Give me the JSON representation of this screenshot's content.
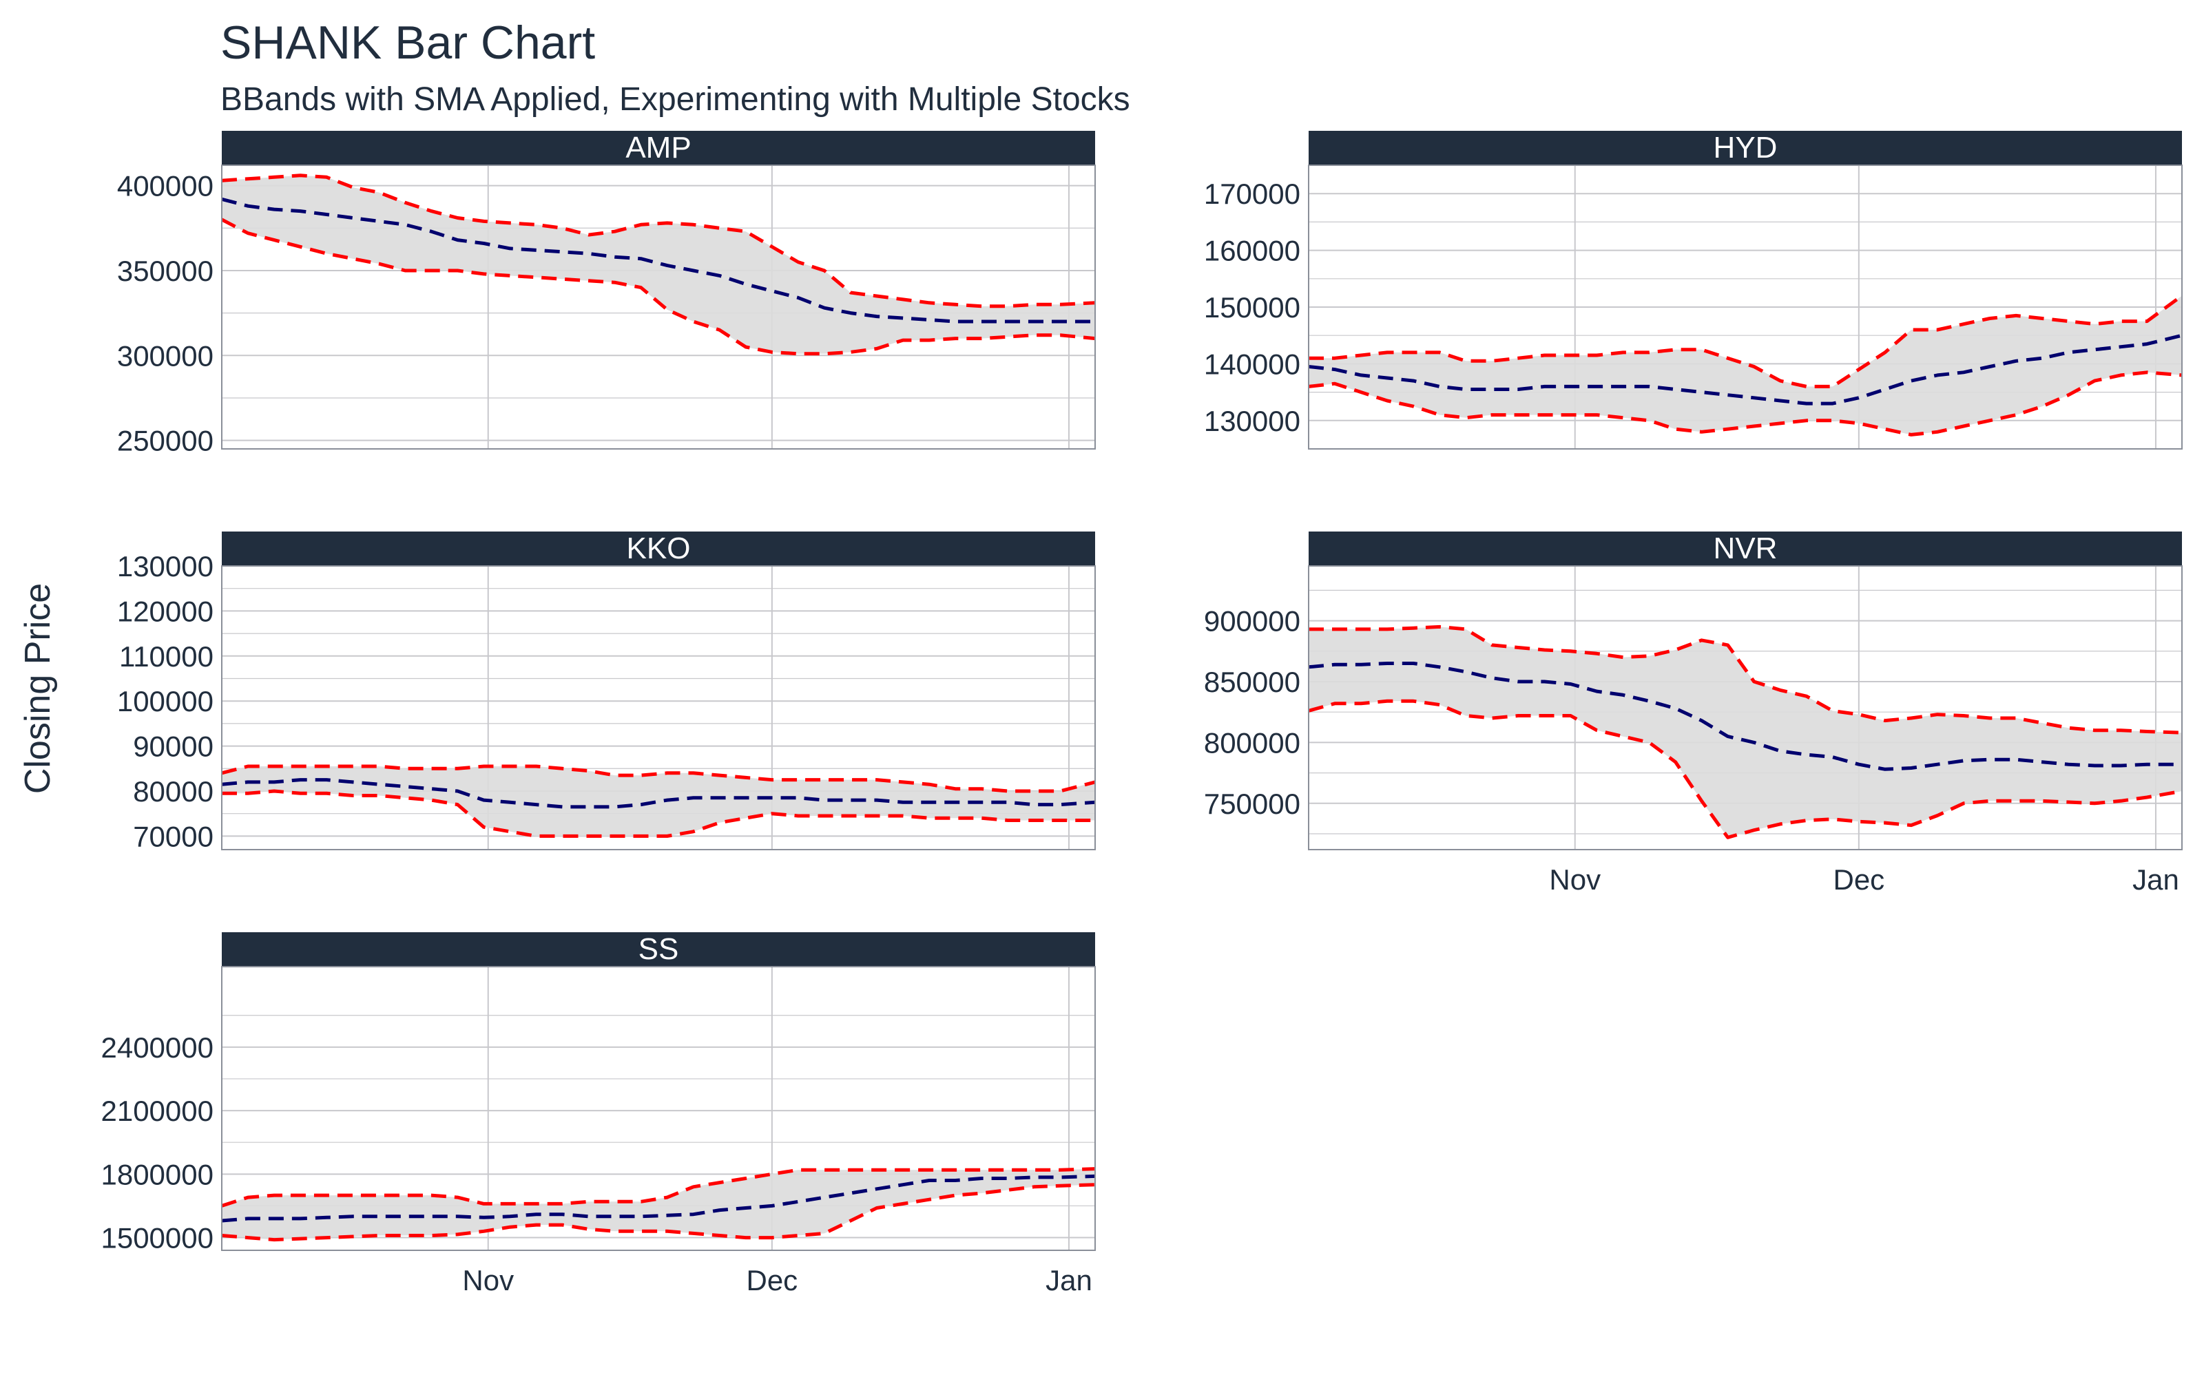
{
  "title": "SHANK Bar Chart",
  "subtitle": "BBands with SMA Applied, Experimenting with Multiple Stocks",
  "ylabel": "Closing Price",
  "colors": {
    "strip": "#212e3e",
    "strip_text": "#ffffff",
    "title": "#212e3e",
    "band_fill": "#dcdcdc",
    "band_line": "#ff0000",
    "sma_line": "#00006e",
    "grid": "#c8c8cc",
    "axis_text": "#212e3e"
  },
  "chart_data": {
    "type": "line",
    "x_axis": {
      "xlim": [
        0,
        100
      ],
      "ticks": [
        {
          "label": "Nov",
          "value": 30.5
        },
        {
          "label": "Dec",
          "value": 63
        },
        {
          "label": "Jan",
          "value": 97
        }
      ]
    },
    "x": [
      0,
      3,
      6,
      9,
      12,
      15,
      18,
      21,
      24,
      27,
      30,
      33,
      36,
      39,
      42,
      45,
      48,
      51,
      54,
      57,
      60,
      63,
      66,
      69,
      72,
      75,
      78,
      81,
      84,
      87,
      90,
      93,
      96,
      100
    ],
    "facets": [
      {
        "name": "AMP",
        "ylim": [
          245000,
          412000
        ],
        "yticks": [
          250000,
          300000,
          350000,
          400000
        ],
        "upper": [
          403000,
          404000,
          405000,
          406000,
          405000,
          399000,
          396000,
          390000,
          385000,
          381000,
          379000,
          378000,
          377000,
          375000,
          371000,
          373000,
          377000,
          378000,
          377000,
          375000,
          373000,
          364000,
          355000,
          350000,
          337000,
          335000,
          333000,
          331000,
          330000,
          329000,
          329000,
          330000,
          330000,
          331000
        ],
        "sma": [
          392000,
          388000,
          386000,
          385000,
          383000,
          381000,
          379000,
          377000,
          373000,
          368000,
          366000,
          363000,
          362000,
          361000,
          360000,
          358000,
          357000,
          353000,
          350000,
          347000,
          342000,
          338000,
          334000,
          328000,
          325000,
          323000,
          322000,
          321000,
          320000,
          320000,
          320000,
          320000,
          320000,
          320000
        ],
        "lower": [
          380000,
          372000,
          368000,
          364000,
          360000,
          357000,
          354000,
          350000,
          350000,
          350000,
          348000,
          347000,
          346000,
          345000,
          344000,
          343000,
          340000,
          327000,
          320000,
          315000,
          305000,
          302000,
          301000,
          301000,
          302000,
          304000,
          309000,
          309000,
          310000,
          310000,
          311000,
          312000,
          312000,
          310000
        ]
      },
      {
        "name": "HYD",
        "ylim": [
          125000,
          175000
        ],
        "yticks": [
          130000,
          140000,
          150000,
          160000,
          170000
        ],
        "upper": [
          141000,
          141000,
          141500,
          142000,
          142000,
          142000,
          140500,
          140500,
          141000,
          141500,
          141500,
          141500,
          142000,
          142000,
          142500,
          142500,
          141000,
          139500,
          137000,
          136000,
          136000,
          139000,
          142000,
          146000,
          146000,
          147000,
          148000,
          148500,
          148000,
          147500,
          147000,
          147500,
          147500,
          152000
        ],
        "sma": [
          139500,
          139000,
          138000,
          137500,
          137000,
          136000,
          135500,
          135500,
          135500,
          136000,
          136000,
          136000,
          136000,
          136000,
          135500,
          135000,
          134500,
          134000,
          133500,
          133000,
          133000,
          134000,
          135500,
          137000,
          138000,
          138500,
          139500,
          140500,
          141000,
          142000,
          142500,
          143000,
          143500,
          145000
        ],
        "lower": [
          136000,
          136500,
          135000,
          133500,
          132500,
          131000,
          130500,
          131000,
          131000,
          131000,
          131000,
          131000,
          130500,
          130000,
          128500,
          128000,
          128500,
          129000,
          129500,
          130000,
          130000,
          129500,
          128500,
          127500,
          128000,
          129000,
          130000,
          131000,
          132500,
          134500,
          137000,
          138000,
          138500,
          138000
        ]
      },
      {
        "name": "KKO",
        "ylim": [
          67000,
          130000
        ],
        "yticks": [
          70000,
          80000,
          90000,
          100000,
          110000,
          120000,
          130000
        ],
        "upper": [
          84000,
          85500,
          85500,
          85500,
          85500,
          85500,
          85500,
          85000,
          85000,
          85000,
          85500,
          85500,
          85500,
          85000,
          84500,
          83500,
          83500,
          84000,
          84000,
          83500,
          83000,
          82500,
          82500,
          82500,
          82500,
          82500,
          82000,
          81500,
          80500,
          80500,
          80000,
          80000,
          80000,
          82000
        ],
        "sma": [
          81500,
          82000,
          82000,
          82500,
          82500,
          82000,
          81500,
          81000,
          80500,
          80000,
          78000,
          77500,
          77000,
          76500,
          76500,
          76500,
          77000,
          78000,
          78500,
          78500,
          78500,
          78500,
          78500,
          78000,
          78000,
          78000,
          77500,
          77500,
          77500,
          77500,
          77500,
          77000,
          77000,
          77500
        ],
        "lower": [
          79500,
          79500,
          80000,
          79500,
          79500,
          79000,
          79000,
          78500,
          78000,
          77000,
          72000,
          71000,
          70000,
          70000,
          70000,
          70000,
          70000,
          70000,
          71000,
          73000,
          74000,
          75000,
          74500,
          74500,
          74500,
          74500,
          74500,
          74000,
          74000,
          74000,
          73500,
          73500,
          73500,
          73500
        ]
      },
      {
        "name": "NVR",
        "ylim": [
          712000,
          945000
        ],
        "yticks": [
          750000,
          800000,
          850000,
          900000
        ],
        "upper": [
          893000,
          893000,
          893000,
          893000,
          894000,
          895000,
          893000,
          880000,
          878000,
          876000,
          875000,
          873000,
          870000,
          871000,
          876000,
          884000,
          880000,
          850000,
          843000,
          838000,
          826000,
          823000,
          818000,
          820000,
          823000,
          822000,
          820000,
          820000,
          816000,
          812000,
          810000,
          810000,
          809000,
          808000
        ],
        "sma": [
          862000,
          864000,
          864000,
          865000,
          865000,
          862000,
          858000,
          853000,
          850000,
          850000,
          848000,
          842000,
          839000,
          834000,
          828000,
          818000,
          805000,
          800000,
          793000,
          790000,
          788000,
          782000,
          778000,
          779000,
          782000,
          785000,
          786000,
          786000,
          784000,
          782000,
          781000,
          781000,
          782000,
          782000
        ],
        "lower": [
          826000,
          832000,
          832000,
          834000,
          834000,
          831000,
          822000,
          820000,
          822000,
          822000,
          822000,
          810000,
          805000,
          800000,
          784000,
          752000,
          722000,
          728000,
          733000,
          736000,
          737000,
          735000,
          734000,
          732000,
          740000,
          750000,
          752000,
          752000,
          752000,
          751000,
          750000,
          752000,
          755000,
          760000
        ]
      },
      {
        "name": "SS",
        "ylim": [
          1440000,
          2780000
        ],
        "yticks": [
          1500000,
          1800000,
          2100000,
          2400000
        ],
        "upper": [
          1650000,
          1690000,
          1700000,
          1700000,
          1700000,
          1700000,
          1700000,
          1700000,
          1700000,
          1690000,
          1660000,
          1660000,
          1660000,
          1660000,
          1670000,
          1670000,
          1670000,
          1690000,
          1740000,
          1760000,
          1780000,
          1800000,
          1820000,
          1820000,
          1820000,
          1820000,
          1820000,
          1820000,
          1820000,
          1820000,
          1820000,
          1820000,
          1820000,
          1825000
        ],
        "sma": [
          1580000,
          1590000,
          1590000,
          1590000,
          1595000,
          1600000,
          1600000,
          1600000,
          1600000,
          1600000,
          1595000,
          1600000,
          1610000,
          1610000,
          1600000,
          1600000,
          1600000,
          1605000,
          1610000,
          1630000,
          1640000,
          1650000,
          1670000,
          1690000,
          1710000,
          1730000,
          1750000,
          1770000,
          1770000,
          1780000,
          1780000,
          1785000,
          1785000,
          1790000
        ],
        "lower": [
          1510000,
          1500000,
          1490000,
          1495000,
          1500000,
          1505000,
          1510000,
          1510000,
          1510000,
          1515000,
          1530000,
          1550000,
          1560000,
          1560000,
          1540000,
          1530000,
          1530000,
          1530000,
          1520000,
          1510000,
          1500000,
          1500000,
          1510000,
          1520000,
          1580000,
          1640000,
          1660000,
          1680000,
          1700000,
          1710000,
          1725000,
          1740000,
          1745000,
          1750000
        ]
      }
    ]
  }
}
